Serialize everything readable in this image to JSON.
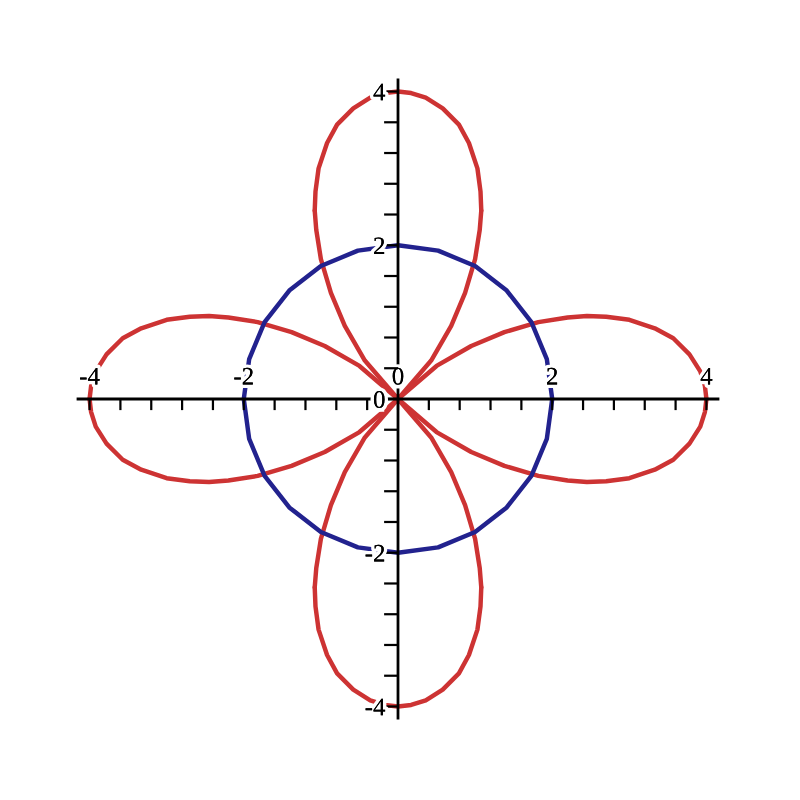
{
  "chart_data": {
    "type": "line",
    "series": [
      {
        "color": "#cd3333",
        "x": [
          0.0,
          0.5,
          0.95,
          1.38,
          1.82,
          2.2,
          2.45,
          2.7,
          3.0,
          3.33,
          3.57,
          3.78,
          3.92,
          3.98,
          4.0
        ],
        "values": [
          0.0,
          0.43,
          0.69,
          0.87,
          1.0,
          1.06,
          1.08,
          1.07,
          1.03,
          0.92,
          0.79,
          0.58,
          0.36,
          0.17,
          0.0
        ]
      },
      {
        "color": "#cd3333",
        "x": [
          0.0,
          0.5,
          0.95,
          1.38,
          1.82,
          2.2,
          2.45,
          2.7,
          3.0,
          3.33,
          3.57,
          3.78,
          3.92,
          3.98,
          4.0
        ],
        "values": [
          0.0,
          -0.43,
          -0.69,
          -0.87,
          -1.0,
          -1.06,
          -1.08,
          -1.07,
          -1.03,
          -0.92,
          -0.79,
          -0.58,
          -0.36,
          -0.17,
          0.0
        ]
      },
      {
        "color": "#cd3333",
        "x": [
          -4.0,
          -3.98,
          -3.92,
          -3.78,
          -3.57,
          -3.33,
          -3.0,
          -2.7,
          -2.45,
          -2.2,
          -1.82,
          -1.38,
          -0.95,
          -0.5,
          0.0
        ],
        "values": [
          0.0,
          0.17,
          0.36,
          0.58,
          0.79,
          0.92,
          1.03,
          1.07,
          1.08,
          1.06,
          1.0,
          0.87,
          0.69,
          0.43,
          0.0
        ]
      },
      {
        "color": "#cd3333",
        "x": [
          -4.0,
          -3.98,
          -3.92,
          -3.78,
          -3.57,
          -3.33,
          -3.0,
          -2.7,
          -2.45,
          -2.2,
          -1.82,
          -1.38,
          -0.95,
          -0.5,
          0.0
        ],
        "values": [
          0.0,
          -0.17,
          -0.36,
          -0.58,
          -0.79,
          -0.92,
          -1.03,
          -1.07,
          -1.08,
          -1.06,
          -1.0,
          -0.87,
          -0.69,
          -0.43,
          0.0
        ]
      },
      {
        "color": "#cd3333",
        "x": [
          0.0,
          0.43,
          0.69,
          0.87,
          1.0,
          1.06,
          1.08
        ],
        "values": [
          0.0,
          0.5,
          0.95,
          1.38,
          1.82,
          2.2,
          2.45
        ]
      },
      {
        "color": "#cd3333",
        "x": [
          -1.08,
          -1.07,
          -1.03,
          -0.92,
          -0.79,
          -0.58,
          -0.36,
          -0.17,
          0.0,
          0.17,
          0.36,
          0.58,
          0.79,
          0.92,
          1.03,
          1.07,
          1.08
        ],
        "values": [
          2.45,
          2.7,
          3.0,
          3.33,
          3.57,
          3.78,
          3.92,
          3.98,
          4.0,
          3.98,
          3.92,
          3.78,
          3.57,
          3.33,
          3.0,
          2.7,
          2.45
        ]
      },
      {
        "color": "#cd3333",
        "x": [
          -1.08,
          -1.06,
          -1.0,
          -0.87,
          -0.69,
          -0.43,
          0.0
        ],
        "values": [
          2.45,
          2.2,
          1.82,
          1.38,
          0.95,
          0.5,
          0.0
        ]
      },
      {
        "color": "#cd3333",
        "x": [
          0.0,
          0.43,
          0.69,
          0.87,
          1.0,
          1.06,
          1.08
        ],
        "values": [
          0.0,
          -0.5,
          -0.95,
          -1.38,
          -1.82,
          -2.2,
          -2.45
        ]
      },
      {
        "color": "#cd3333",
        "x": [
          -1.08,
          -1.07,
          -1.03,
          -0.92,
          -0.79,
          -0.58,
          -0.36,
          -0.17,
          0.0,
          0.17,
          0.36,
          0.58,
          0.79,
          0.92,
          1.03,
          1.07,
          1.08
        ],
        "values": [
          -2.45,
          -2.7,
          -3.0,
          -3.33,
          -3.57,
          -3.78,
          -3.92,
          -3.98,
          -4.0,
          -3.98,
          -3.92,
          -3.78,
          -3.57,
          -3.33,
          -3.0,
          -2.7,
          -2.45
        ]
      },
      {
        "color": "#cd3333",
        "x": [
          -1.08,
          -1.06,
          -1.0,
          -0.87,
          -0.69,
          -0.43,
          0.0
        ],
        "values": [
          -2.45,
          -2.2,
          -1.82,
          -1.38,
          -0.95,
          -0.5,
          0.0
        ]
      },
      {
        "color": "#22228e",
        "x": [
          -2.0,
          -1.93,
          -1.73,
          -1.41,
          -1.0,
          -0.52,
          0.0,
          0.52,
          1.0,
          1.41,
          1.73,
          1.93,
          2.0
        ],
        "values": [
          0.0,
          0.52,
          1.0,
          1.41,
          1.73,
          1.93,
          2.0,
          1.93,
          1.73,
          1.41,
          1.0,
          0.52,
          0.0
        ]
      },
      {
        "color": "#22228e",
        "x": [
          -2.0,
          -1.93,
          -1.73,
          -1.41,
          -1.0,
          -0.52,
          0.0,
          0.52,
          1.0,
          1.41,
          1.73,
          1.93,
          2.0
        ],
        "values": [
          0.0,
          -0.52,
          -1.0,
          -1.41,
          -1.73,
          -1.93,
          -2.0,
          -1.93,
          -1.73,
          -1.41,
          -1.0,
          -0.52,
          0.0
        ]
      }
    ],
    "xlim": [
      -4.15,
      4.15
    ],
    "ylim": [
      -4.15,
      4.15
    ],
    "xticks": [
      -4,
      {
        "value": -3.6,
        "label": null
      },
      {
        "value": -3.2,
        "label": null
      },
      {
        "value": -2.8,
        "label": null
      },
      {
        "value": -2.4,
        "label": null
      },
      -2,
      {
        "value": -1.6,
        "label": null
      },
      {
        "value": -1.2,
        "label": null
      },
      {
        "value": -0.8,
        "label": null
      },
      {
        "value": -0.4,
        "label": null
      },
      0,
      {
        "value": 0.4,
        "label": null
      },
      {
        "value": 0.8,
        "label": null
      },
      {
        "value": 1.2,
        "label": null
      },
      {
        "value": 1.6,
        "label": null
      },
      2,
      {
        "value": 2.4,
        "label": null
      },
      {
        "value": 2.8,
        "label": null
      },
      {
        "value": 3.2,
        "label": null
      },
      {
        "value": 3.6,
        "label": null
      },
      4
    ],
    "yticks": [
      -4,
      {
        "value": -3.6,
        "label": null
      },
      {
        "value": -3.2,
        "label": null
      },
      {
        "value": -2.8,
        "label": null
      },
      {
        "value": -2.4,
        "label": null
      },
      -2,
      {
        "value": -1.6,
        "label": null
      },
      {
        "value": -1.2,
        "label": null
      },
      {
        "value": -0.8,
        "label": null
      },
      {
        "value": -0.4,
        "label": null
      },
      0,
      {
        "value": 0.4,
        "label": null
      },
      {
        "value": 0.8,
        "label": null
      },
      {
        "value": 1.2,
        "label": null
      },
      {
        "value": 1.6,
        "label": null
      },
      2,
      {
        "value": 2.4,
        "label": null
      },
      {
        "value": 2.8,
        "label": null
      },
      {
        "value": 3.2,
        "label": null
      },
      {
        "value": 3.6,
        "label": null
      },
      4
    ]
  }
}
